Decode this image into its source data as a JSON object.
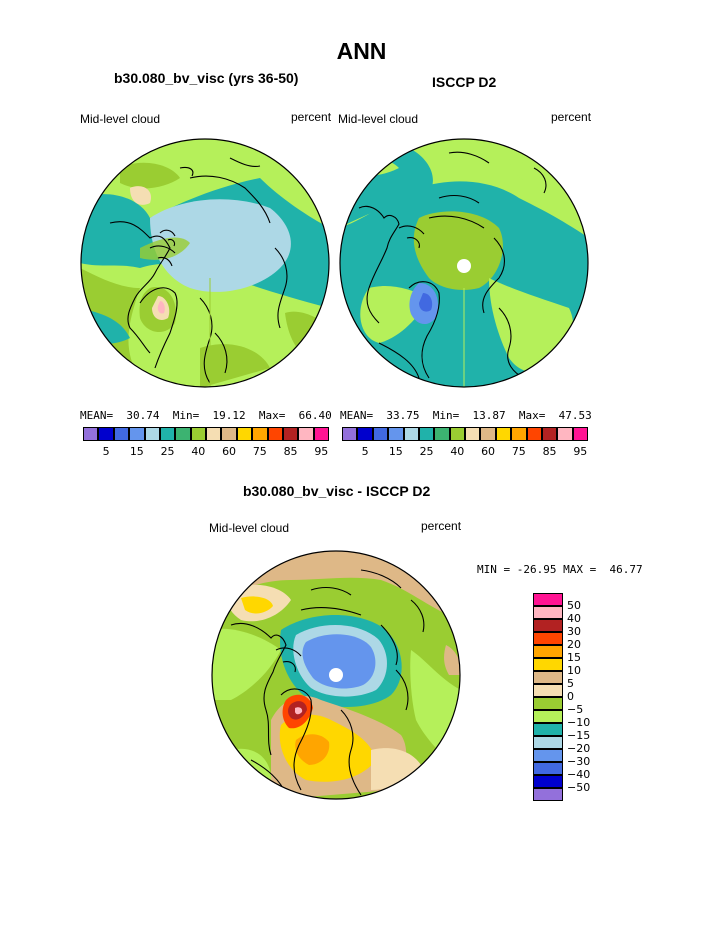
{
  "title": "ANN",
  "panels": [
    {
      "id": "model",
      "subtitle": "b30.080_bv_visc (yrs 36-50)",
      "left_label": "Mid-level cloud",
      "right_label": "percent",
      "stats": {
        "mean_label": "MEAN=",
        "mean": "30.74",
        "min_label": "Min=",
        "min": "19.12",
        "max_label": "Max=",
        "max": "66.40"
      }
    },
    {
      "id": "obs",
      "subtitle": "ISCCP D2",
      "left_label": "Mid-level cloud",
      "right_label": "percent",
      "stats": {
        "mean_label": "MEAN=",
        "mean": "33.75",
        "min_label": "Min=",
        "min": "13.87",
        "max_label": "Max=",
        "max": "47.53"
      }
    },
    {
      "id": "diff",
      "subtitle": "b30.080_bv_visc - ISCCP D2",
      "left_label": "Mid-level cloud",
      "right_label": "percent",
      "minmax": "MIN = -26.95 MAX =  46.77"
    }
  ],
  "abs_colorbar": {
    "colors": [
      "#9370db",
      "#0000cd",
      "#4169e1",
      "#6495ed",
      "#add8e6",
      "#20b2aa",
      "#3cb371",
      "#9acd32",
      "#f5deb3",
      "#deb887",
      "#ffd700",
      "#ffa500",
      "#ff4500",
      "#b22222",
      "#ffb6c1",
      "#ff1493"
    ],
    "tick_labels": [
      "5",
      "15",
      "25",
      "40",
      "60",
      "75",
      "85",
      "95"
    ]
  },
  "diff_colorbar": {
    "colors": [
      "#ff1493",
      "#ffb6c1",
      "#b22222",
      "#ff4500",
      "#ffa500",
      "#ffd700",
      "#deb887",
      "#f5deb3",
      "#9acd32",
      "#b5f05a",
      "#20b2aa",
      "#add8e6",
      "#6495ed",
      "#4169e1",
      "#0000cd",
      "#9370db"
    ],
    "tick_labels": [
      "50",
      "40",
      "30",
      "20",
      "15",
      "10",
      "5",
      "0",
      "−5",
      "−10",
      "−15",
      "−20",
      "−30",
      "−40",
      "−50"
    ]
  }
}
